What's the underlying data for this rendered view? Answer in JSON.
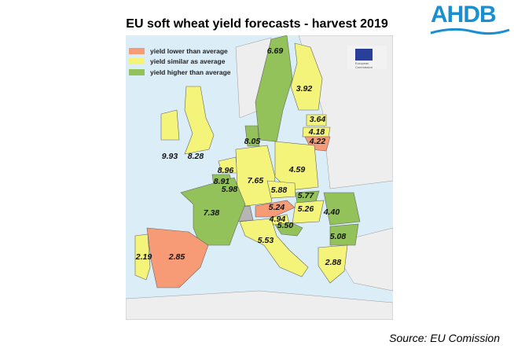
{
  "title": "EU soft wheat yield forecasts - harvest 2019",
  "logo": "AHDB",
  "eu_logo_text": "European Commission",
  "legend": [
    {
      "label": "yield lower than average",
      "color": "#f79a76"
    },
    {
      "label": "yield similar as average",
      "color": "#f5f47a"
    },
    {
      "label": "yield higher than average",
      "color": "#93c25a"
    }
  ],
  "colors": {
    "sea": "#dbeef8",
    "non_eu": "#eeeeee",
    "no_data": "#b5b5b5"
  },
  "countries": [
    {
      "name": "Sweden",
      "value": "6.69",
      "category": "higher"
    },
    {
      "name": "Finland",
      "value": "3.92",
      "category": "similar"
    },
    {
      "name": "Estonia",
      "value": "3.64",
      "category": "similar"
    },
    {
      "name": "Latvia",
      "value": "4.18",
      "category": "similar"
    },
    {
      "name": "Lithuania",
      "value": "4.22",
      "category": "lower"
    },
    {
      "name": "Denmark",
      "value": "8.05",
      "category": "higher"
    },
    {
      "name": "Ireland",
      "value": "9.93",
      "category": "similar"
    },
    {
      "name": "United Kingdom",
      "value": "8.28",
      "category": "similar"
    },
    {
      "name": "Netherlands",
      "value": "8.96",
      "category": "similar"
    },
    {
      "name": "Belgium",
      "value": "8.91",
      "category": "higher"
    },
    {
      "name": "Luxembourg",
      "value": "5.98",
      "category": "similar"
    },
    {
      "name": "Germany",
      "value": "7.65",
      "category": "similar"
    },
    {
      "name": "Poland",
      "value": "4.59",
      "category": "similar"
    },
    {
      "name": "Czechia",
      "value": "5.88",
      "category": "similar"
    },
    {
      "name": "Slovakia",
      "value": "5.77",
      "category": "higher"
    },
    {
      "name": "Austria",
      "value": "5.24",
      "category": "lower"
    },
    {
      "name": "Hungary",
      "value": "5.26",
      "category": "similar"
    },
    {
      "name": "Slovenia",
      "value": "4.94",
      "category": "similar"
    },
    {
      "name": "Croatia",
      "value": "5.50",
      "category": "higher"
    },
    {
      "name": "Romania",
      "value": "4.40",
      "category": "higher"
    },
    {
      "name": "Bulgaria",
      "value": "5.08",
      "category": "higher"
    },
    {
      "name": "France",
      "value": "7.38",
      "category": "higher"
    },
    {
      "name": "Italy",
      "value": "5.53",
      "category": "similar"
    },
    {
      "name": "Greece",
      "value": "2.88",
      "category": "similar"
    },
    {
      "name": "Spain",
      "value": "2.85",
      "category": "lower"
    },
    {
      "name": "Portugal",
      "value": "2.19",
      "category": "similar"
    }
  ],
  "source": "Source: EU Comission"
}
